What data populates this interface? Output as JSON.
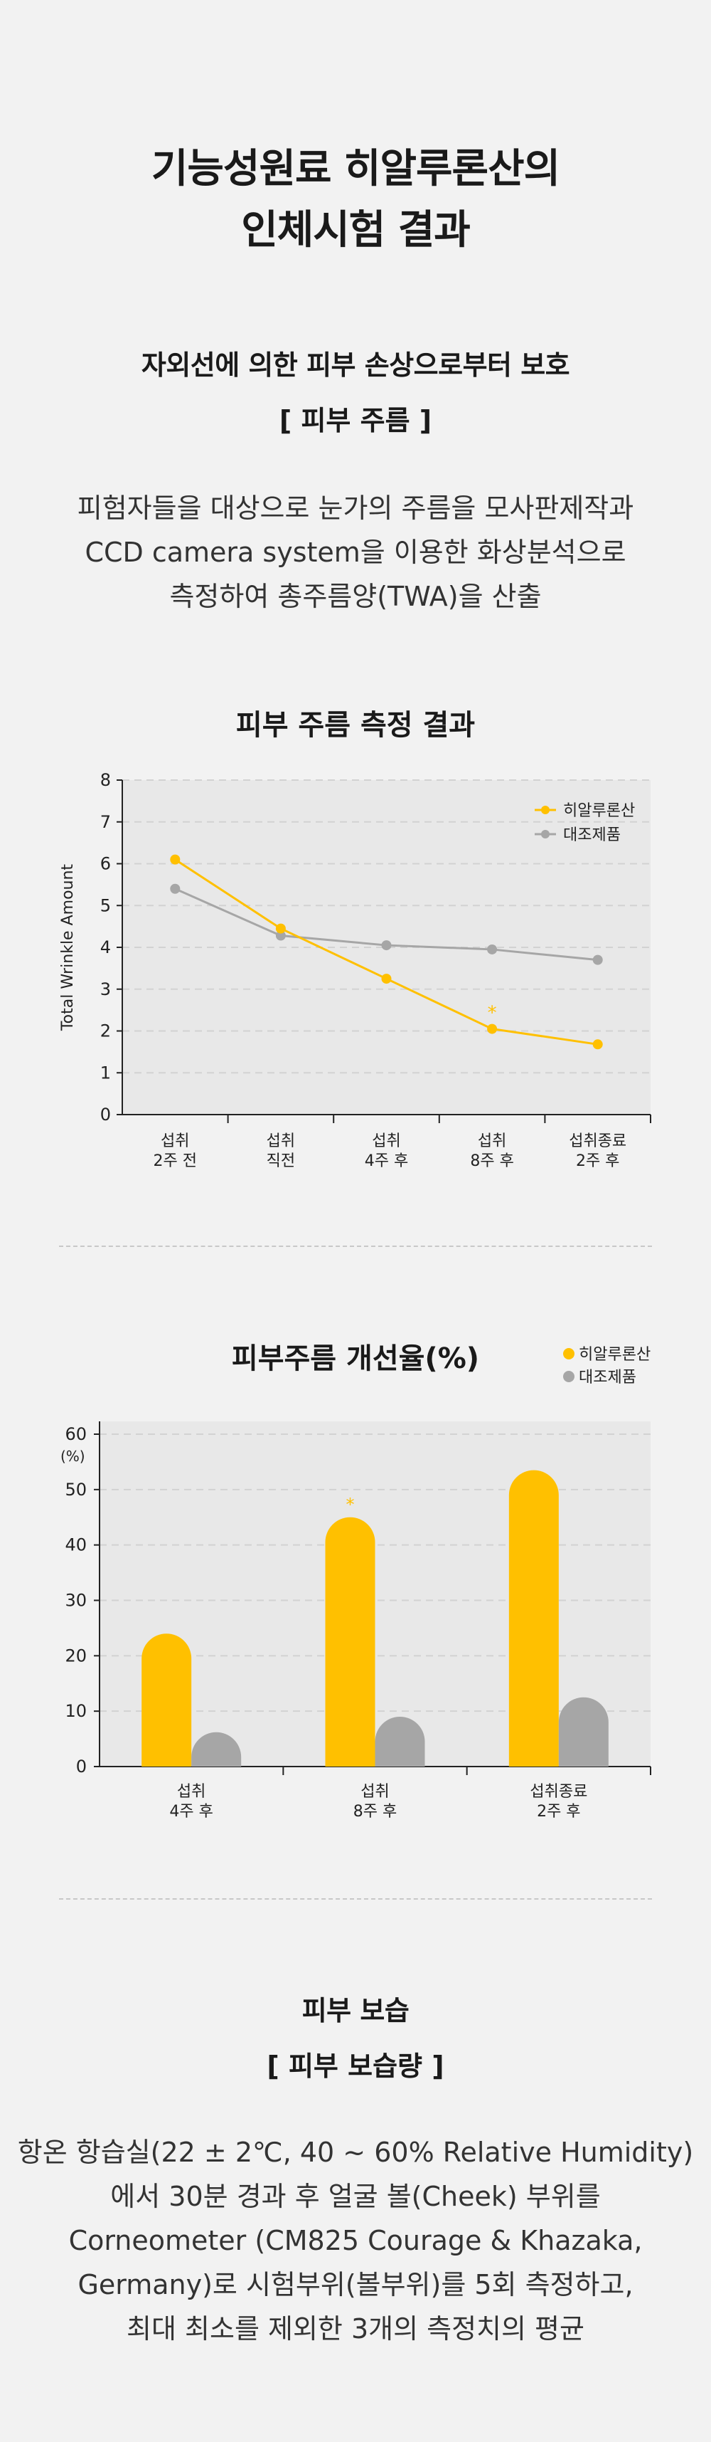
{
  "header": {
    "title_line1": "기능성원료 히알루론산의",
    "title_line2": "인체시험 결과"
  },
  "wrinkle_section": {
    "heading": "자외선에 의한 피부 손상으로부터 보호",
    "subheading": "[ 피부 주름 ]",
    "desc_line1": "피험자들을 대상으로 눈가의 주름을 모사판제작과",
    "desc_line2": "CCD camera system을 이용한 화상분석으로",
    "desc_line3": "측정하여 총주름양(TWA)을 산출"
  },
  "colors": {
    "hyaluronic": "#ffc000",
    "control": "#a6a6a6",
    "plot_bg": "#e8e8e8"
  },
  "chart_data": [
    {
      "type": "line",
      "title": "피부 주름 측정 결과",
      "ylabel": "Total Wrinkle Amount",
      "ylim": [
        0,
        8
      ],
      "yticks": [
        "0",
        "1",
        "2",
        "3",
        "4",
        "5",
        "6",
        "7",
        "8"
      ],
      "categories": [
        [
          "섭취",
          "2주 전"
        ],
        [
          "섭취",
          "직전"
        ],
        [
          "섭취",
          "4주 후"
        ],
        [
          "섭취",
          "8주 후"
        ],
        [
          "섭취종료",
          "2주 후"
        ]
      ],
      "series": [
        {
          "name": "히알루론산",
          "values": [
            6.1,
            4.45,
            3.25,
            2.05,
            1.68
          ]
        },
        {
          "name": "대조제품",
          "values": [
            5.4,
            4.28,
            4.05,
            3.95,
            3.7
          ]
        }
      ],
      "annotations": [
        {
          "text": "*",
          "category_index": 3
        }
      ],
      "legend": "top-right",
      "grid": true
    },
    {
      "type": "bar",
      "title": "피부주름 개선율(%)",
      "ylabel": "(%)",
      "ylim": [
        0,
        60
      ],
      "yticks": [
        "0",
        "10",
        "20",
        "30",
        "40",
        "50",
        "60"
      ],
      "categories": [
        [
          "섭취",
          "4주 후"
        ],
        [
          "섭취",
          "8주 후"
        ],
        [
          "섭취종료",
          "2주 후"
        ]
      ],
      "series": [
        {
          "name": "히알루론산",
          "values": [
            24,
            45,
            53.5
          ]
        },
        {
          "name": "대조제품",
          "values": [
            6.2,
            9,
            12.5
          ]
        }
      ],
      "annotations": [
        {
          "text": "*",
          "category_index": 1
        }
      ],
      "legend": "top-right",
      "grid": true
    }
  ],
  "moisture_section": {
    "heading": "피부 보습",
    "subheading": "[ 피부 보습량 ]",
    "desc_line1": "항온 항습실(22 ± 2℃, 40 ~ 60% Relative Humidity)",
    "desc_line2": "에서 30분 경과 후 얼굴 볼(Cheek) 부위를",
    "desc_line3": "Corneometer (CM825 Courage & Khazaka,",
    "desc_line4": "Germany)로 시험부위(볼부위)를 5회 측정하고,",
    "desc_line5": "최대 최소를 제외한 3개의 측정치의 평균"
  }
}
